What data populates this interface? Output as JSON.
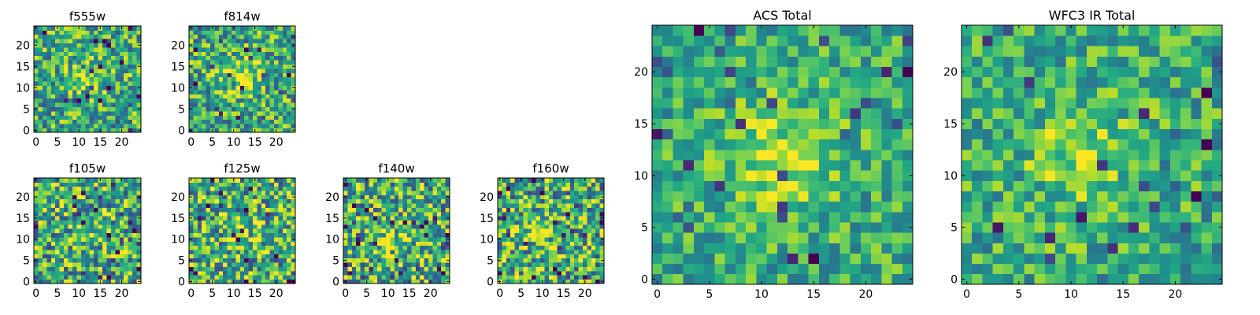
{
  "chart_data": [
    {
      "type": "heatmap",
      "title": "f555w",
      "grid_size": 25,
      "xlim": [
        -0.5,
        24.5
      ],
      "ylim": [
        -0.5,
        24.5
      ],
      "xticks": [
        "0",
        "5",
        "10",
        "15",
        "20"
      ],
      "yticks": [
        "0",
        "5",
        "10",
        "15",
        "20"
      ],
      "colormap": "viridis",
      "grid": false,
      "seed": 11,
      "noise": 0.34,
      "peak": [
        12,
        12
      ],
      "peak_strength": 0.25,
      "peak_width": 3
    },
    {
      "type": "heatmap",
      "title": "f814w",
      "grid_size": 25,
      "xlim": [
        -0.5,
        24.5
      ],
      "ylim": [
        -0.5,
        24.5
      ],
      "xticks": [
        "0",
        "5",
        "10",
        "15",
        "20"
      ],
      "yticks": [
        "0",
        "5",
        "10",
        "15",
        "20"
      ],
      "colormap": "viridis",
      "grid": false,
      "seed": 23,
      "noise": 0.34,
      "peak": [
        12,
        13
      ],
      "peak_strength": 0.3,
      "peak_width": 3
    },
    {
      "type": "heatmap",
      "title": "f105w",
      "grid_size": 25,
      "xlim": [
        -0.5,
        24.5
      ],
      "ylim": [
        -0.5,
        24.5
      ],
      "xticks": [
        "0",
        "5",
        "10",
        "15",
        "20"
      ],
      "yticks": [
        "0",
        "5",
        "10",
        "15",
        "20"
      ],
      "colormap": "viridis",
      "grid": false,
      "seed": 37,
      "noise": 0.4,
      "peak": [
        12,
        12
      ],
      "peak_strength": 0.1,
      "peak_width": 3
    },
    {
      "type": "heatmap",
      "title": "f125w",
      "grid_size": 25,
      "xlim": [
        -0.5,
        24.5
      ],
      "ylim": [
        -0.5,
        24.5
      ],
      "xticks": [
        "0",
        "5",
        "10",
        "15",
        "20"
      ],
      "yticks": [
        "0",
        "5",
        "10",
        "15",
        "20"
      ],
      "colormap": "viridis",
      "grid": false,
      "seed": 41,
      "noise": 0.4,
      "peak": [
        12,
        12
      ],
      "peak_strength": 0.1,
      "peak_width": 3
    },
    {
      "type": "heatmap",
      "title": "f140w",
      "grid_size": 25,
      "xlim": [
        -0.5,
        24.5
      ],
      "ylim": [
        -0.5,
        24.5
      ],
      "xticks": [
        "0",
        "5",
        "10",
        "15",
        "20"
      ],
      "yticks": [
        "0",
        "5",
        "10",
        "15",
        "20"
      ],
      "colormap": "viridis",
      "grid": false,
      "seed": 53,
      "noise": 0.4,
      "peak": [
        10,
        10
      ],
      "peak_strength": 0.2,
      "peak_width": 3
    },
    {
      "type": "heatmap",
      "title": "f160w",
      "grid_size": 25,
      "xlim": [
        -0.5,
        24.5
      ],
      "ylim": [
        -0.5,
        24.5
      ],
      "xticks": [
        "0",
        "5",
        "10",
        "15",
        "20"
      ],
      "yticks": [
        "0",
        "5",
        "10",
        "15",
        "20"
      ],
      "colormap": "viridis",
      "grid": false,
      "seed": 67,
      "noise": 0.4,
      "peak": [
        11,
        11
      ],
      "peak_strength": 0.25,
      "peak_width": 3
    },
    {
      "type": "heatmap",
      "title": "ACS Total",
      "grid_size": 25,
      "xlim": [
        -0.5,
        24.5
      ],
      "ylim": [
        -0.5,
        24.5
      ],
      "xticks": [
        "0",
        "5",
        "10",
        "15",
        "20"
      ],
      "yticks": [
        "0",
        "5",
        "10",
        "15",
        "20"
      ],
      "colormap": "viridis",
      "grid": false,
      "seed": 79,
      "noise": 0.24,
      "peak": [
        12,
        12
      ],
      "peak_strength": 0.3,
      "peak_width": 3.5
    },
    {
      "type": "heatmap",
      "title": "WFC3 IR Total",
      "grid_size": 25,
      "xlim": [
        -0.5,
        24.5
      ],
      "ylim": [
        -0.5,
        24.5
      ],
      "xticks": [
        "0",
        "5",
        "10",
        "15",
        "20"
      ],
      "yticks": [
        "0",
        "5",
        "10",
        "15",
        "20"
      ],
      "colormap": "viridis",
      "grid": false,
      "seed": 97,
      "noise": 0.26,
      "peak": [
        11,
        12
      ],
      "peak_strength": 0.25,
      "peak_width": 3.5
    }
  ]
}
